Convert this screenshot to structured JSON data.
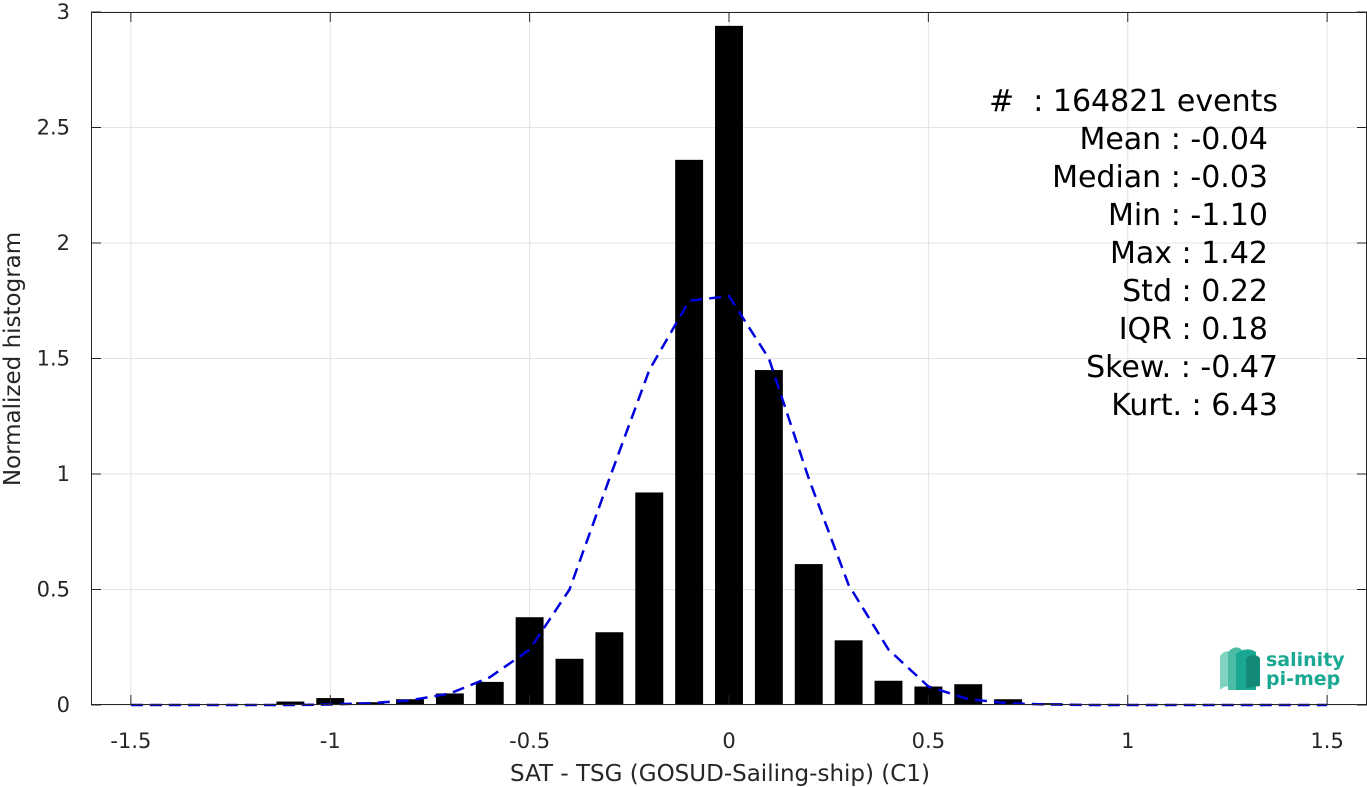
{
  "chart_data": {
    "type": "bar",
    "xlabel": "SAT - TSG (GOSUD-Sailing-ship) (C1)",
    "ylabel": "Normalized histogram",
    "xlim": [
      -1.6,
      1.6
    ],
    "ylim": [
      0,
      3
    ],
    "xticks": [
      -1.5,
      -1,
      -0.5,
      0,
      0.5,
      1,
      1.5
    ],
    "xtick_labels": [
      "-1.5",
      "-1",
      "-0.5",
      "0",
      "0.5",
      "1",
      "1.5"
    ],
    "yticks": [
      0,
      0.5,
      1,
      1.5,
      2,
      2.5,
      3
    ],
    "ytick_labels": [
      "0",
      "0.5",
      "1",
      "1.5",
      "2",
      "2.5",
      "3"
    ],
    "grid": true,
    "bar_color": "#000000",
    "bin_width": 0.1,
    "bars": {
      "x": [
        -1.1,
        -1.0,
        -0.9,
        -0.8,
        -0.7,
        -0.6,
        -0.5,
        -0.4,
        -0.3,
        -0.2,
        -0.1,
        0.0,
        0.1,
        0.2,
        0.3,
        0.4,
        0.5,
        0.6,
        0.7,
        0.8
      ],
      "values": [
        0.015,
        0.03,
        0.012,
        0.025,
        0.05,
        0.1,
        0.38,
        0.2,
        0.315,
        0.92,
        2.36,
        2.94,
        1.45,
        0.61,
        0.28,
        0.105,
        0.08,
        0.09,
        0.025,
        0.008
      ]
    },
    "series": [
      {
        "style": "dashed",
        "color": "#0000dd",
        "x": [
          -1.5,
          -1.4,
          -1.3,
          -1.2,
          -1.1,
          -1.0,
          -0.9,
          -0.8,
          -0.7,
          -0.6,
          -0.5,
          -0.4,
          -0.3,
          -0.2,
          -0.1,
          0.0,
          0.1,
          0.2,
          0.3,
          0.4,
          0.5,
          0.6,
          0.7,
          0.8,
          0.9,
          1.0,
          1.1,
          1.2,
          1.3,
          1.4,
          1.5
        ],
        "y": [
          0,
          0,
          0,
          0,
          0,
          0.002,
          0.008,
          0.02,
          0.05,
          0.12,
          0.24,
          0.5,
          0.98,
          1.45,
          1.75,
          1.77,
          1.5,
          0.98,
          0.52,
          0.24,
          0.08,
          0.025,
          0.008,
          0.002,
          0,
          0,
          0,
          0,
          0,
          0,
          0
        ]
      }
    ],
    "annotations": [
      "#  : 164821 events",
      "Mean : -0.04",
      "Median : -0.03",
      "Min : -1.10",
      "Max : 1.42",
      "Std : 0.22",
      "IQR : 0.18",
      "Skew. : -0.47",
      "Kurt. : 6.43"
    ]
  },
  "logo": {
    "line1": "salinity",
    "line2": "pi-mep",
    "color": "#1aa893"
  }
}
